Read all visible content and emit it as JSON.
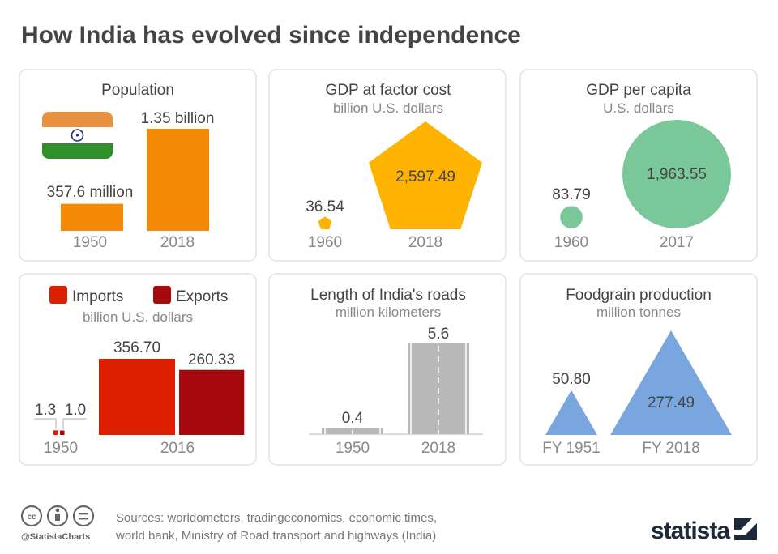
{
  "title": "How India has evolved since independence",
  "colors": {
    "population": "#f58a07",
    "gdp": "#fdb300",
    "gdp_per_capita": "#7ac89a",
    "imports": "#dd1f00",
    "exports": "#a6090e",
    "roads": "#b8b8b8",
    "foodgrain": "#7aa6e0",
    "flag_saffron": "#e8913f",
    "flag_green": "#2f8f2a",
    "flag_chakra": "#1b2a80"
  },
  "chart_data": [
    {
      "type": "bar",
      "title": "Population",
      "categories": [
        "1950",
        "2018"
      ],
      "values": [
        357.6,
        1350
      ],
      "unit": "million",
      "labels": [
        "357.6 million",
        "1.35 billion"
      ],
      "icon": "india-flag"
    },
    {
      "type": "pictogram-area",
      "shape": "pentagon",
      "title": "GDP at factor cost",
      "subtitle": "billion U.S. dollars",
      "categories": [
        "1960",
        "2018"
      ],
      "values": [
        36.54,
        2597.49
      ],
      "labels": [
        "36.54",
        "2,597.49"
      ]
    },
    {
      "type": "pictogram-area",
      "shape": "circle",
      "title": "GDP per capita",
      "subtitle": "U.S. dollars",
      "categories": [
        "1960",
        "2017"
      ],
      "values": [
        83.79,
        1963.55
      ],
      "labels": [
        "83.79",
        "1,963.55"
      ]
    },
    {
      "type": "pictogram-area",
      "shape": "square",
      "title": "",
      "subtitle": "billion U.S. dollars",
      "legend": [
        "Imports",
        "Exports"
      ],
      "categories": [
        "1950",
        "2016"
      ],
      "series": [
        {
          "name": "Imports",
          "values": [
            1.3,
            356.7
          ],
          "labels": [
            "1.3",
            "356.70"
          ]
        },
        {
          "name": "Exports",
          "values": [
            1.0,
            260.33
          ],
          "labels": [
            "1.0",
            "260.33"
          ]
        }
      ]
    },
    {
      "type": "bar",
      "title": "Length of India's roads",
      "subtitle": "million kilometers",
      "categories": [
        "1950",
        "2018"
      ],
      "values": [
        0.4,
        5.6
      ],
      "labels": [
        "0.4",
        "5.6"
      ],
      "icon": "road"
    },
    {
      "type": "pictogram-area",
      "shape": "triangle",
      "title": "Foodgrain production",
      "subtitle": "million tonnes",
      "categories": [
        "FY 1951",
        "FY 2018"
      ],
      "values": [
        50.8,
        277.49
      ],
      "labels": [
        "50.80",
        "277.49"
      ]
    }
  ],
  "footer": {
    "sources_line1": "Sources: worldometers, tradingeconomics, economic times,",
    "sources_line2": "world bank, Ministry of Road transport and highways (India)",
    "handle": "@StatistaCharts",
    "logo": "statista",
    "license_icons": [
      "cc-icon",
      "by-icon",
      "nd-icon"
    ]
  }
}
